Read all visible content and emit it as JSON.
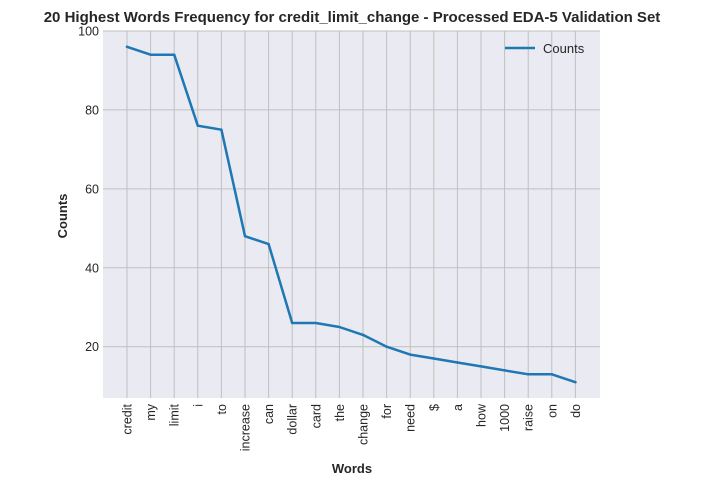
{
  "chart_data": {
    "type": "line",
    "title": "20 Highest Words Frequency for credit_limit_change - Processed EDA-5 Validation Set",
    "xlabel": "Words",
    "ylabel": "Counts",
    "categories": [
      "credit",
      "my",
      "limit",
      "i",
      "to",
      "increase",
      "can",
      "dollar",
      "card",
      "the",
      "change",
      "for",
      "need",
      "$",
      "a",
      "how",
      "1000",
      "raise",
      "on",
      "do"
    ],
    "series": [
      {
        "name": "Counts",
        "values": [
          96,
          94,
          94,
          76,
          75,
          48,
          46,
          26,
          26,
          25,
          23,
          20,
          18,
          17,
          16,
          15,
          14,
          13,
          13,
          11
        ],
        "color": "#1f77b4"
      }
    ],
    "ylim": [
      7,
      100
    ],
    "yticks": [
      20,
      40,
      60,
      80,
      100
    ],
    "grid": true,
    "legend_position": "top-right",
    "colors": {
      "background": "#eaeaf2",
      "grid": "#c0c0c0",
      "line": "#1f77b4"
    }
  }
}
